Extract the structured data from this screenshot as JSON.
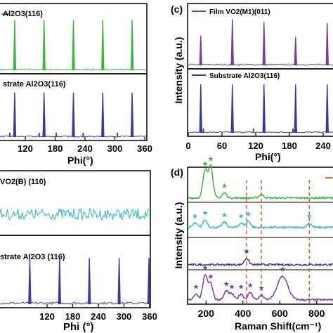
{
  "panels": {
    "a": {
      "top_legend": "Al2O3(116)",
      "bottom_legend": "strate Al2O3(116)",
      "xticks": [
        "120",
        "180",
        "240",
        "300",
        "360"
      ],
      "xlabel": "Phi(°)"
    },
    "b": {
      "top_legend": "VO2(B) (110)",
      "bottom_legend": "strate Al2O3 (116)",
      "xticks": [
        "120",
        "180",
        "240",
        "300",
        "360"
      ],
      "xlabel": "Phi (°)"
    },
    "c": {
      "label": "(c)",
      "top_legend": "Film VO2(M1)(011)",
      "bottom_legend": "Substrate Al2O3(116)",
      "ylabel": "Intensity (a.u.)",
      "xticks": [
        "0",
        "60",
        "120",
        "180",
        "240"
      ],
      "xlabel": "Phi(°)"
    },
    "d": {
      "label": "(d)",
      "ylabel": "Intensity (a.u.)",
      "xticks": [
        "200",
        "400",
        "600",
        "800"
      ],
      "xlabel": "Raman Shift(cm⁻¹)",
      "dashed_lines_cm": [
        420,
        500,
        760
      ]
    }
  },
  "colors": {
    "green": "#3fb53f",
    "navy": "#3a3a9e",
    "purple": "#7a3d9b",
    "teal": "#3db8c4",
    "orange": "#e45a2a",
    "axis": "#000000"
  },
  "chart_data": [
    {
      "id": "a-top",
      "type": "line",
      "xlim": [
        60,
        360
      ],
      "series": [
        {
          "peaks_phi": [
            90,
            150,
            210,
            270,
            330
          ],
          "peak_height": 0.85
        }
      ]
    },
    {
      "id": "a-bottom",
      "type": "line",
      "xlim": [
        60,
        360
      ],
      "series": [
        {
          "peaks_phi": [
            90,
            150,
            210,
            270,
            330
          ],
          "peak_height": 0.8
        }
      ]
    },
    {
      "id": "c-top",
      "type": "line",
      "xlim": [
        0,
        280
      ],
      "series": [
        {
          "peaks_phi": [
            25,
            85,
            145,
            205,
            265
          ],
          "peak_heights": [
            0.55,
            0.85,
            0.8,
            0.52,
            0.78
          ]
        }
      ]
    },
    {
      "id": "c-bottom",
      "type": "line",
      "xlim": [
        0,
        280
      ],
      "series": [
        {
          "peaks_phi": [
            25,
            85,
            145,
            205,
            265
          ],
          "peak_height": 0.85
        }
      ]
    },
    {
      "id": "b-top",
      "type": "line",
      "xlim": [
        60,
        360
      ],
      "series": [
        {
          "description_values": "noise only"
        }
      ]
    },
    {
      "id": "b-bottom",
      "type": "line",
      "xlim": [
        60,
        360
      ],
      "series": [
        {
          "peaks_phi": [
            120,
            180,
            240,
            300,
            360
          ],
          "peak_height": 0.8
        }
      ]
    },
    {
      "id": "d",
      "type": "line",
      "xlim": [
        100,
        900
      ],
      "series": [
        {
          "peaks_cm": [
            195,
            225,
            300,
            500
          ],
          "peak_heights": [
            0.8,
            0.95,
            0.15,
            0.1
          ]
        },
        {
          "peaks_cm": [
            140,
            195,
            300,
            390,
            430,
            760
          ],
          "peak_heights": [
            0.2,
            0.35,
            0.25,
            0.2,
            0.3,
            0.2
          ]
        },
        {
          "peaks_cm": [
            420
          ],
          "peak_heights": [
            0.3
          ]
        },
        {
          "peaks_cm": [
            145,
            195,
            225,
            310,
            340,
            390,
            440,
            500,
            615
          ],
          "peak_heights": [
            0.2,
            0.85,
            0.55,
            0.3,
            0.2,
            0.2,
            0.25,
            0.15,
            0.8
          ]
        }
      ]
    }
  ]
}
